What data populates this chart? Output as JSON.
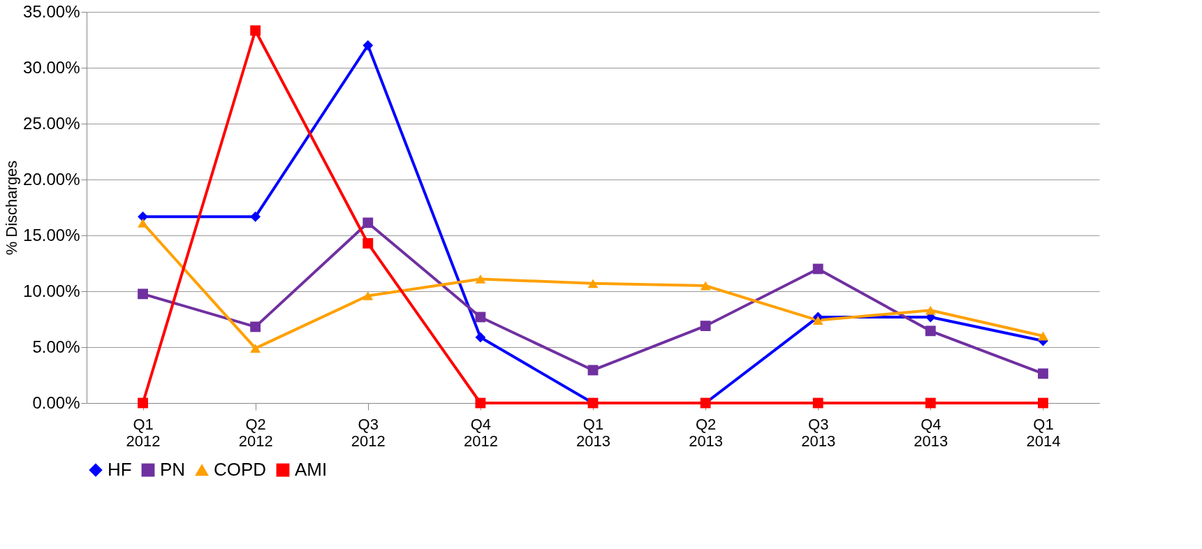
{
  "chart_data": {
    "type": "line",
    "ylabel": "% Discharges",
    "categories": [
      "Q1 2012",
      "Q2 2012",
      "Q3 2012",
      "Q4 2012",
      "Q1 2013",
      "Q2 2013",
      "Q3 2013",
      "Q4 2013",
      "Q1 2014"
    ],
    "series": [
      {
        "name": "HF",
        "color": "#0000ff",
        "marker": "diamond",
        "values": [
          16.67,
          16.67,
          32.0,
          5.88,
          0,
          0,
          7.69,
          7.69,
          5.56
        ]
      },
      {
        "name": "PN",
        "color": "#7030a0",
        "marker": "square",
        "values": [
          9.76,
          6.82,
          16.13,
          7.69,
          2.94,
          6.9,
          12.0,
          6.45,
          2.63
        ]
      },
      {
        "name": "COPD",
        "color": "#ffa000",
        "marker": "triangle",
        "values": [
          16.1,
          4.9,
          9.6,
          11.1,
          10.7,
          10.5,
          7.4,
          8.3,
          6.0
        ]
      },
      {
        "name": "AMI",
        "color": "#ff0000",
        "marker": "square",
        "values": [
          0,
          33.33,
          14.29,
          0,
          0,
          0,
          0,
          0,
          0
        ]
      }
    ],
    "ylim": [
      0,
      35
    ],
    "yticks": [
      {
        "value": 0,
        "label": "0.00%"
      },
      {
        "value": 5,
        "label": "5.00%"
      },
      {
        "value": 10,
        "label": "10.00%"
      },
      {
        "value": 15,
        "label": "15.00%"
      },
      {
        "value": 20,
        "label": "20.00%"
      },
      {
        "value": 25,
        "label": "25.00%"
      },
      {
        "value": 30,
        "label": "30.00%"
      },
      {
        "value": 35,
        "label": "35.00%"
      }
    ],
    "grid": "y",
    "legend": "bottom"
  }
}
